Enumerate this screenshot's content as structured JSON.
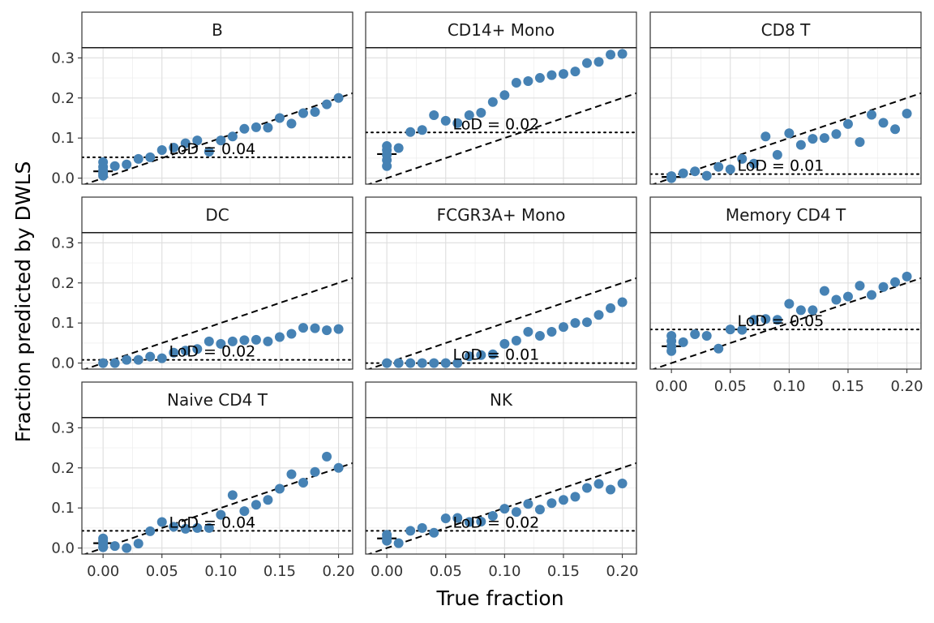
{
  "chart_data": {
    "type": "scatter",
    "xlabel": "True fraction",
    "ylabel": "Fraction predicted by DWLS",
    "xlim": [
      -0.018,
      0.212
    ],
    "ylim": [
      -0.015,
      0.325
    ],
    "x_ticks": [
      0.0,
      0.05,
      0.1,
      0.15,
      0.2
    ],
    "x_tick_labels": [
      "0.00",
      "0.05",
      "0.10",
      "0.15",
      "0.20"
    ],
    "y_ticks": [
      0.0,
      0.1,
      0.2,
      0.3
    ],
    "y_tick_labels": [
      "0.0",
      "0.1",
      "0.2",
      "0.3"
    ],
    "grid": true,
    "point_color": "#4682B4",
    "reference_line": "y = x (dashed)",
    "panels": [
      {
        "title": "B",
        "lod_label": "LoD = 0.04",
        "lod_threshold": 0.052,
        "zero_summary": {
          "mean": 0.017,
          "low": 0.006,
          "high": 0.04
        },
        "x": [
          0.0,
          0.0,
          0.0,
          0.0,
          0.0,
          0.01,
          0.02,
          0.03,
          0.04,
          0.05,
          0.06,
          0.07,
          0.08,
          0.09,
          0.1,
          0.11,
          0.12,
          0.13,
          0.14,
          0.15,
          0.16,
          0.17,
          0.18,
          0.19,
          0.2
        ],
        "y": [
          0.006,
          0.012,
          0.019,
          0.028,
          0.04,
          0.03,
          0.034,
          0.048,
          0.052,
          0.07,
          0.076,
          0.087,
          0.094,
          0.066,
          0.094,
          0.104,
          0.123,
          0.127,
          0.126,
          0.15,
          0.136,
          0.162,
          0.165,
          0.184,
          0.2
        ]
      },
      {
        "title": "CD14+ Mono",
        "lod_label": "LoD = 0.02",
        "lod_threshold": 0.114,
        "zero_summary": {
          "mean": 0.06,
          "low": 0.03,
          "high": 0.08
        },
        "x": [
          0.0,
          0.0,
          0.0,
          0.0,
          0.0,
          0.01,
          0.02,
          0.03,
          0.04,
          0.05,
          0.06,
          0.07,
          0.08,
          0.09,
          0.1,
          0.11,
          0.12,
          0.13,
          0.14,
          0.15,
          0.16,
          0.17,
          0.18,
          0.19,
          0.2
        ],
        "y": [
          0.03,
          0.045,
          0.058,
          0.07,
          0.08,
          0.075,
          0.115,
          0.12,
          0.157,
          0.143,
          0.137,
          0.157,
          0.163,
          0.19,
          0.207,
          0.238,
          0.242,
          0.25,
          0.257,
          0.26,
          0.266,
          0.287,
          0.29,
          0.308,
          0.31
        ]
      },
      {
        "title": "CD8 T",
        "lod_label": "LoD = 0.01",
        "lod_threshold": 0.01,
        "zero_summary": {
          "mean": 0.003,
          "low": 0.0,
          "high": 0.006
        },
        "x": [
          0.0,
          0.0,
          0.0,
          0.01,
          0.02,
          0.03,
          0.04,
          0.05,
          0.06,
          0.07,
          0.08,
          0.09,
          0.1,
          0.11,
          0.12,
          0.13,
          0.14,
          0.15,
          0.16,
          0.17,
          0.18,
          0.19,
          0.2
        ],
        "y": [
          0.0,
          0.002,
          0.005,
          0.012,
          0.017,
          0.006,
          0.028,
          0.022,
          0.048,
          0.036,
          0.104,
          0.058,
          0.112,
          0.083,
          0.098,
          0.1,
          0.11,
          0.135,
          0.09,
          0.158,
          0.138,
          0.122,
          0.161
        ]
      },
      {
        "title": "DC",
        "lod_label": "LoD = 0.02",
        "lod_threshold": 0.008,
        "zero_summary": null,
        "x": [
          0.0,
          0.01,
          0.02,
          0.03,
          0.04,
          0.05,
          0.06,
          0.07,
          0.08,
          0.09,
          0.1,
          0.11,
          0.12,
          0.13,
          0.14,
          0.15,
          0.16,
          0.17,
          0.18,
          0.19,
          0.2
        ],
        "y": [
          0.0,
          0.0,
          0.008,
          0.008,
          0.016,
          0.012,
          0.026,
          0.031,
          0.035,
          0.054,
          0.048,
          0.054,
          0.057,
          0.058,
          0.054,
          0.065,
          0.073,
          0.088,
          0.087,
          0.082,
          0.085
        ]
      },
      {
        "title": "FCGR3A+ Mono",
        "lod_label": "LoD = 0.01",
        "lod_threshold": 0.0,
        "zero_summary": null,
        "x": [
          0.0,
          0.01,
          0.02,
          0.03,
          0.04,
          0.05,
          0.06,
          0.07,
          0.08,
          0.09,
          0.1,
          0.11,
          0.12,
          0.13,
          0.14,
          0.15,
          0.16,
          0.17,
          0.18,
          0.19,
          0.2
        ],
        "y": [
          0.0,
          0.0,
          0.0,
          0.0,
          0.0,
          0.0,
          0.0,
          0.017,
          0.02,
          0.022,
          0.048,
          0.056,
          0.078,
          0.068,
          0.078,
          0.09,
          0.1,
          0.102,
          0.12,
          0.137,
          0.152
        ]
      },
      {
        "title": "Memory CD4 T",
        "lod_label": "LoD = 0.05",
        "lod_threshold": 0.084,
        "zero_summary": {
          "mean": 0.042,
          "low": 0.03,
          "high": 0.07
        },
        "x": [
          0.0,
          0.0,
          0.0,
          0.0,
          0.01,
          0.02,
          0.03,
          0.04,
          0.05,
          0.06,
          0.07,
          0.08,
          0.09,
          0.1,
          0.11,
          0.12,
          0.13,
          0.14,
          0.15,
          0.16,
          0.17,
          0.18,
          0.19,
          0.2
        ],
        "y": [
          0.03,
          0.042,
          0.055,
          0.068,
          0.052,
          0.072,
          0.068,
          0.036,
          0.084,
          0.083,
          0.108,
          0.11,
          0.108,
          0.148,
          0.132,
          0.132,
          0.18,
          0.158,
          0.166,
          0.193,
          0.17,
          0.19,
          0.202,
          0.216
        ]
      },
      {
        "title": "Naive CD4 T",
        "lod_label": "LoD = 0.04",
        "lod_threshold": 0.043,
        "zero_summary": {
          "mean": 0.012,
          "low": 0.0,
          "high": 0.024
        },
        "x": [
          0.0,
          0.0,
          0.0,
          0.0,
          0.01,
          0.02,
          0.03,
          0.04,
          0.05,
          0.06,
          0.07,
          0.08,
          0.09,
          0.1,
          0.11,
          0.12,
          0.13,
          0.14,
          0.15,
          0.16,
          0.17,
          0.18,
          0.19,
          0.2
        ],
        "y": [
          0.002,
          0.01,
          0.018,
          0.024,
          0.005,
          0.0,
          0.011,
          0.042,
          0.065,
          0.053,
          0.048,
          0.05,
          0.05,
          0.083,
          0.132,
          0.092,
          0.108,
          0.12,
          0.148,
          0.184,
          0.163,
          0.19,
          0.228,
          0.2
        ]
      },
      {
        "title": "NK",
        "lod_label": "LoD = 0.02",
        "lod_threshold": 0.043,
        "zero_summary": {
          "mean": 0.024,
          "low": 0.018,
          "high": 0.034
        },
        "x": [
          0.0,
          0.0,
          0.0,
          0.01,
          0.02,
          0.03,
          0.04,
          0.05,
          0.06,
          0.07,
          0.08,
          0.09,
          0.1,
          0.11,
          0.12,
          0.13,
          0.14,
          0.15,
          0.16,
          0.17,
          0.18,
          0.19,
          0.2
        ],
        "y": [
          0.018,
          0.025,
          0.033,
          0.012,
          0.043,
          0.05,
          0.038,
          0.074,
          0.075,
          0.065,
          0.066,
          0.08,
          0.098,
          0.09,
          0.11,
          0.096,
          0.112,
          0.12,
          0.128,
          0.15,
          0.16,
          0.146,
          0.161
        ]
      }
    ]
  }
}
